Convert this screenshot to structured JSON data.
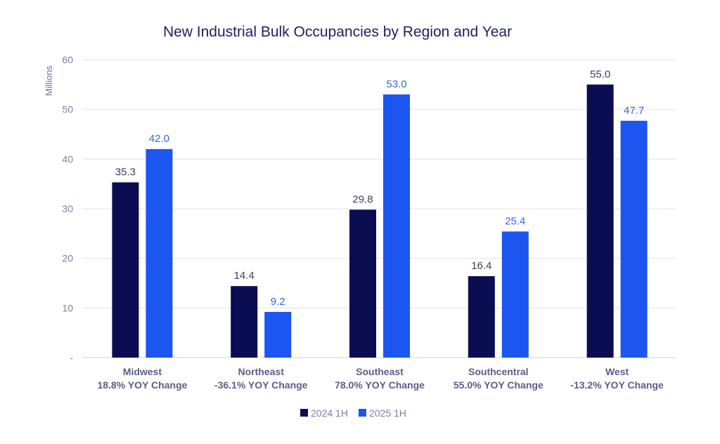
{
  "chart_data": {
    "type": "bar",
    "title": "New Industrial Bulk Occupancies by Region and Year",
    "xlabel": "",
    "ylabel": "Millions",
    "ylim": [
      0,
      60
    ],
    "yticks": [
      "-",
      "10",
      "20",
      "30",
      "40",
      "50",
      "60"
    ],
    "grid": true,
    "legend_position": "bottom",
    "categories": [
      [
        "Midwest",
        "18.8% YOY Change"
      ],
      [
        "Northeast",
        "-36.1% YOY Change"
      ],
      [
        "Southeast",
        "78.0% YOY Change"
      ],
      [
        "Southcentral",
        "55.0% YOY Change"
      ],
      [
        "West",
        "-13.2% YOY Change"
      ]
    ],
    "series": [
      {
        "name": "2024 1H",
        "color": "#0b0d52",
        "label_color": "#3c3f5e",
        "values": [
          35.3,
          14.4,
          29.8,
          16.4,
          55.0
        ],
        "labels": [
          "35.3",
          "14.4",
          "29.8",
          "16.4",
          "55.0"
        ]
      },
      {
        "name": "2025 1H",
        "color": "#1c55f0",
        "label_color": "#3a63e8",
        "values": [
          42.0,
          9.2,
          53.0,
          25.4,
          47.7
        ],
        "labels": [
          "42.0",
          "9.2",
          "53.0",
          "25.4",
          "47.7"
        ]
      }
    ]
  }
}
